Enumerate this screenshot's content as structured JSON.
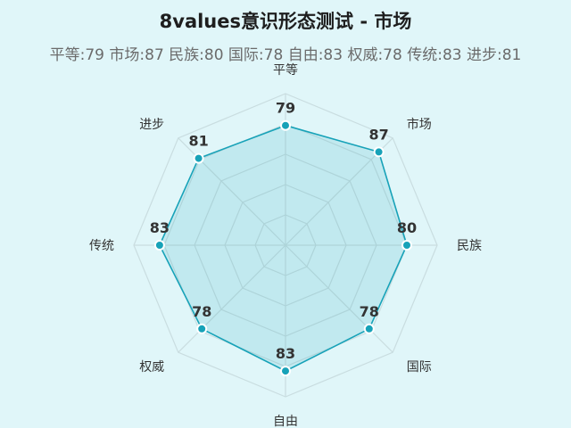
{
  "header": {
    "title": "8values意识形态测试 - 市场",
    "subtitle": "平等:79 市场:87 民族:80 国际:78 自由:83 权威:78 传统:83 进步:81"
  },
  "colors": {
    "background": "#e0f6f9",
    "series_line": "#17a2b8",
    "series_fill": "#17a2b8",
    "grid": "#c9dde0"
  },
  "chart_data": {
    "type": "radar",
    "title": "8values意识形态测试 - 市场",
    "categories": [
      "平等",
      "市场",
      "民族",
      "国际",
      "自由",
      "权威",
      "传统",
      "进步"
    ],
    "series": [
      {
        "values": [
          79,
          87,
          80,
          78,
          83,
          78,
          83,
          81
        ]
      }
    ],
    "value_labels": [
      "79",
      "87",
      "80",
      "78",
      "83",
      "78",
      "83",
      "81"
    ],
    "rlim": [
      0,
      100
    ],
    "grid_levels": [
      20,
      40,
      60,
      80,
      100
    ],
    "grid": true,
    "legend": "none"
  }
}
